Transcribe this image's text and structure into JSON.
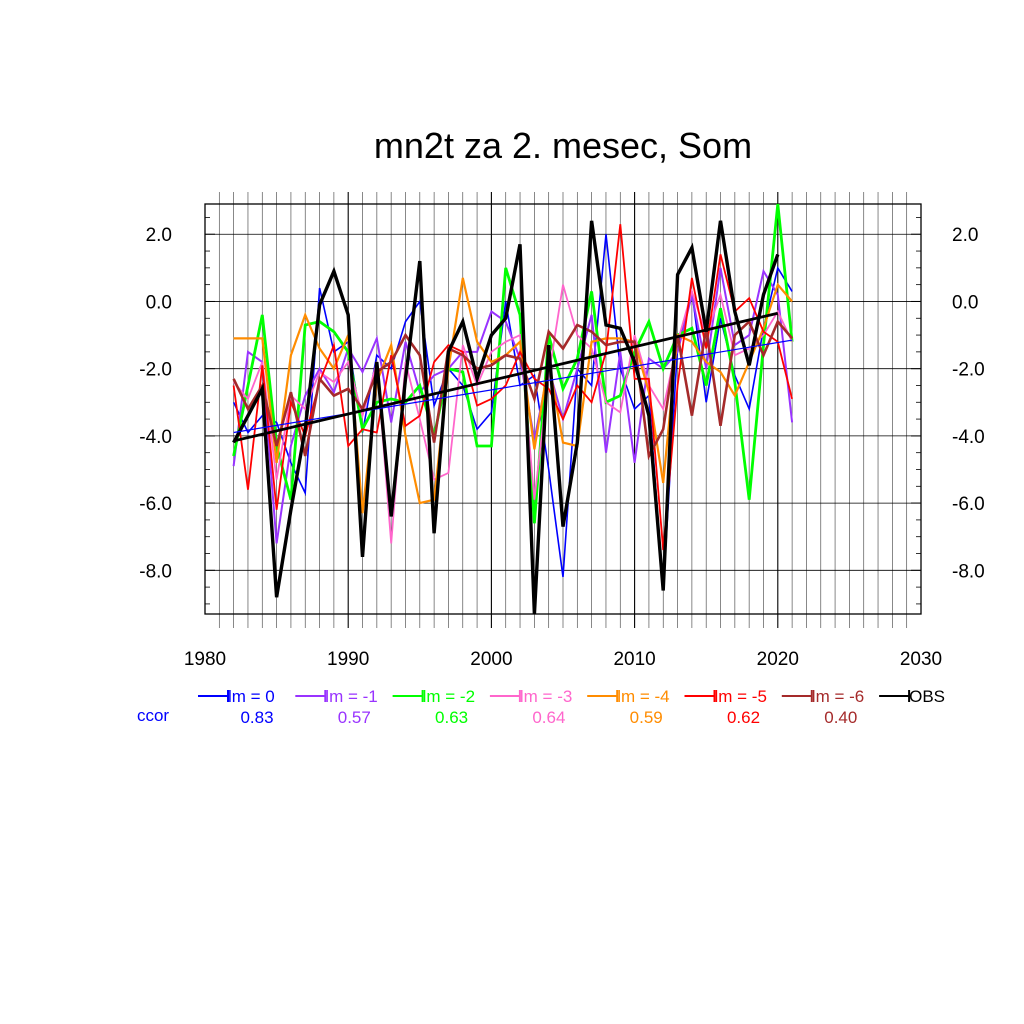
{
  "chart_data": {
    "type": "line",
    "title": "mn2t za 2. mesec, Som",
    "xlabel": "",
    "ylabel": "",
    "xlim": [
      1980,
      2030
    ],
    "ylim": [
      -9.3,
      2.9
    ],
    "xticks": [
      1980,
      1990,
      2000,
      2010,
      2020,
      2030
    ],
    "xtick_labels": [
      "1980",
      "1990",
      "2000",
      "2010",
      "2020",
      "2030"
    ],
    "yticks": [
      2,
      0,
      -2,
      -4,
      -6,
      -8
    ],
    "ytick_labels": [
      "2.0",
      "0.0",
      "-2.0",
      "-4.0",
      "-6.0",
      "-8.0"
    ],
    "grid": true,
    "legend_position": "bottom",
    "ccor_label": "ccor",
    "x": [
      1982,
      1983,
      1984,
      1985,
      1986,
      1987,
      1988,
      1989,
      1990,
      1991,
      1992,
      1993,
      1994,
      1995,
      1996,
      1997,
      1998,
      1999,
      2000,
      2001,
      2002,
      2003,
      2004,
      2005,
      2006,
      2007,
      2008,
      2009,
      2010,
      2011,
      2012,
      2013,
      2014,
      2015,
      2016,
      2017,
      2018,
      2019,
      2020,
      2021
    ],
    "series": [
      {
        "name": "lm = 0",
        "ccor": "0.83",
        "color": "#0000ff",
        "width": 1.6,
        "values": [
          -3.0,
          -3.9,
          -3.4,
          -3.6,
          -4.8,
          -5.7,
          0.4,
          -1.5,
          -1.2,
          -3.9,
          -1.6,
          -2.0,
          -0.6,
          0.0,
          -3.1,
          -2.0,
          -2.5,
          -3.8,
          -3.3,
          0.0,
          -2.5,
          -2.2,
          -5.0,
          -8.2,
          -2.0,
          -2.5,
          2.0,
          -2.0,
          -3.2,
          -2.8,
          -8.6,
          -1.3,
          0.3,
          -3.0,
          -0.5,
          -2.2,
          -3.2,
          -0.8,
          1.0,
          0.3
        ]
      },
      {
        "name": "lm = -1",
        "ccor": "0.57",
        "color": "#9933ff",
        "width": 2.0,
        "values": [
          -4.9,
          -1.5,
          -1.8,
          -7.2,
          -4.3,
          -2.8,
          -2.0,
          -2.7,
          -1.4,
          -2.1,
          -1.1,
          -3.6,
          -1.2,
          -2.7,
          -2.2,
          -2.0,
          -1.5,
          -1.5,
          -0.3,
          -0.6,
          -1.7,
          -4.1,
          -2.0,
          -3.5,
          -2.0,
          -0.4,
          -4.5,
          -1.5,
          -4.8,
          -1.7,
          -2.0,
          -1.5,
          0.2,
          -2.0,
          1.0,
          -1.3,
          -1.0,
          0.9,
          0.2,
          -3.6
        ]
      },
      {
        "name": "lm = -2",
        "ccor": "0.63",
        "color": "#00ff00",
        "width": 2.8,
        "values": [
          -4.6,
          -2.5,
          -0.4,
          -4.3,
          -5.9,
          -0.7,
          -0.6,
          -0.9,
          -1.5,
          -3.8,
          -3.0,
          -2.9,
          -3.0,
          -2.5,
          -4.0,
          -2.0,
          -2.1,
          -4.3,
          -4.3,
          1.0,
          -0.4,
          -6.6,
          -1.0,
          -2.6,
          -1.7,
          0.3,
          -3.0,
          -2.8,
          -1.5,
          -0.6,
          -2.0,
          -1.0,
          -0.8,
          -2.5,
          -0.2,
          -2.4,
          -5.9,
          -1.3,
          2.9,
          -1.2
        ]
      },
      {
        "name": "lm = -3",
        "ccor": "0.64",
        "color": "#ff66cc",
        "width": 1.8,
        "values": [
          -2.4,
          -2.9,
          -1.8,
          -5.3,
          -2.8,
          -3.2,
          -2.1,
          -2.4,
          -1.8,
          -3.4,
          -1.8,
          -7.2,
          -1.8,
          -3.5,
          -5.3,
          -5.1,
          -1.3,
          -2.5,
          -1.5,
          -1.2,
          -1.0,
          -5.9,
          -2.2,
          0.5,
          -1.0,
          -1.4,
          -3.0,
          -3.3,
          -1.0,
          -2.5,
          -3.2,
          -1.2,
          0.3,
          -1.0,
          0.2,
          -1.6,
          -1.4,
          -1.0,
          -0.3,
          -1.2
        ]
      },
      {
        "name": "lm = -4",
        "ccor": "0.59",
        "color": "#ff8c00",
        "width": 2.2,
        "values": [
          -1.1,
          -1.1,
          -1.1,
          -4.8,
          -1.6,
          -0.4,
          -1.4,
          -2.0,
          -1.0,
          -6.3,
          -2.4,
          -1.3,
          -4.0,
          -6.0,
          -5.9,
          -2.0,
          0.7,
          -1.2,
          -1.8,
          -1.6,
          -1.2,
          -4.4,
          -1.8,
          -4.2,
          -4.3,
          -1.2,
          -1.1,
          -1.1,
          -1.2,
          -2.7,
          -5.4,
          -1.0,
          -1.2,
          -1.8,
          -2.1,
          -2.8,
          -1.8,
          -0.8,
          0.5,
          0.0
        ]
      },
      {
        "name": "lm = -5",
        "ccor": "0.62",
        "color": "#ff0000",
        "width": 1.8,
        "values": [
          -2.5,
          -5.6,
          -1.9,
          -6.2,
          -3.0,
          -4.0,
          -2.4,
          -1.3,
          -4.3,
          -3.8,
          -3.9,
          -1.6,
          -3.7,
          -3.4,
          -1.8,
          -1.3,
          -1.5,
          -3.1,
          -2.9,
          -2.5,
          -1.5,
          -2.3,
          -2.6,
          -3.5,
          -2.5,
          -3.0,
          -1.5,
          2.3,
          -2.3,
          -2.3,
          -7.4,
          -2.5,
          0.7,
          -1.4,
          1.4,
          -0.3,
          0.1,
          -0.9,
          -1.2,
          -2.9
        ]
      },
      {
        "name": "lm = -6",
        "ccor": "0.40",
        "color": "#a52a2a",
        "width": 2.6,
        "values": [
          -2.3,
          -3.2,
          -2.5,
          -4.3,
          -2.7,
          -4.6,
          -2.3,
          -2.8,
          -2.6,
          -3.2,
          -2.1,
          -1.8,
          -1.0,
          -1.6,
          -4.2,
          -1.4,
          -1.6,
          -2.0,
          -1.9,
          -1.6,
          -1.7,
          -2.9,
          -0.9,
          -1.4,
          -0.7,
          -0.9,
          -1.3,
          -1.2,
          -1.2,
          -4.6,
          -3.8,
          -1.0,
          -3.4,
          -0.8,
          -3.7,
          -1.0,
          -0.6,
          -1.6,
          -0.6,
          -1.1
        ]
      },
      {
        "name": "OBS",
        "ccor": "",
        "color": "#000000",
        "width": 3.4,
        "values": [
          -4.2,
          -3.4,
          -2.6,
          -8.8,
          -6.2,
          -3.8,
          -0.1,
          0.9,
          -0.4,
          -7.6,
          -1.8,
          -6.4,
          -2.3,
          1.2,
          -6.9,
          -1.5,
          -0.6,
          -2.3,
          -1.0,
          -0.5,
          1.7,
          -9.3,
          -1.3,
          -6.7,
          -4.2,
          2.4,
          -0.7,
          -0.8,
          -1.8,
          -3.4,
          -8.6,
          0.8,
          1.6,
          -0.9,
          2.4,
          -0.3,
          -1.9,
          0.2,
          1.4,
          null
        ]
      }
    ],
    "trendlines": [
      {
        "name": "lm = 0 trend",
        "color": "#0000ff",
        "width": 1.2,
        "x": [
          1982,
          2021
        ],
        "y": [
          -3.9,
          -1.15
        ]
      },
      {
        "name": "OBS trend",
        "color": "#000000",
        "width": 2.8,
        "x": [
          1982,
          2020
        ],
        "y": [
          -4.15,
          -0.35
        ]
      }
    ]
  }
}
